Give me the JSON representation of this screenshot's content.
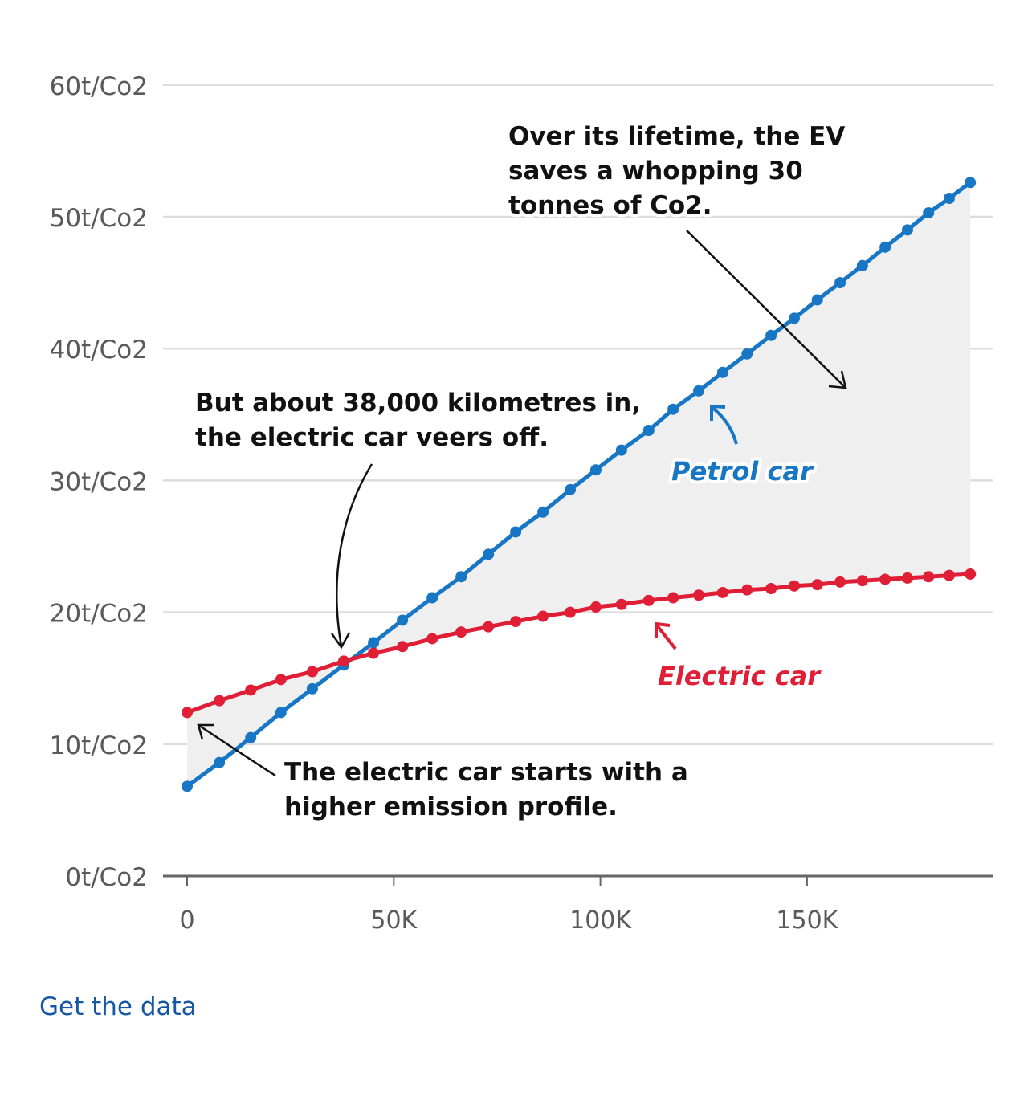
{
  "chart_data": {
    "type": "line",
    "title": "",
    "xlabel": "",
    "ylabel": "",
    "xlim": [
      0,
      195000
    ],
    "ylim": [
      0,
      60
    ],
    "grid": true,
    "y_ticks": [
      {
        "value": 0,
        "label": "0t/Co2"
      },
      {
        "value": 10,
        "label": "10t/Co2"
      },
      {
        "value": 20,
        "label": "20t/Co2"
      },
      {
        "value": 30,
        "label": "30t/Co2"
      },
      {
        "value": 40,
        "label": "40t/Co2"
      },
      {
        "value": 50,
        "label": "50t/Co2"
      },
      {
        "value": 60,
        "label": "60t/Co2"
      }
    ],
    "x_ticks": [
      {
        "value": 0,
        "label": "0"
      },
      {
        "value": 50000,
        "label": "50K"
      },
      {
        "value": 100000,
        "label": "100K"
      },
      {
        "value": 150000,
        "label": "150K"
      }
    ],
    "x": [
      0,
      7800,
      15400,
      22700,
      30300,
      37900,
      45100,
      52100,
      59300,
      66300,
      72900,
      79500,
      86100,
      92700,
      98900,
      105100,
      111700,
      117600,
      123800,
      129600,
      135500,
      141300,
      146900,
      152500,
      158000,
      163400,
      168900,
      174300,
      179400,
      184400,
      189500
    ],
    "series": [
      {
        "name": "Petrol car",
        "color": "#1777c4",
        "values": [
          6.8,
          8.6,
          10.5,
          12.4,
          14.2,
          16.0,
          17.7,
          19.4,
          21.1,
          22.7,
          24.4,
          26.1,
          27.6,
          29.3,
          30.8,
          32.3,
          33.8,
          35.4,
          36.8,
          38.2,
          39.6,
          41.0,
          42.3,
          43.7,
          45.0,
          46.3,
          47.7,
          49.0,
          50.3,
          51.4,
          52.6
        ]
      },
      {
        "name": "Electric car",
        "color": "#e01f36",
        "values": [
          12.4,
          13.3,
          14.1,
          14.9,
          15.5,
          16.3,
          16.9,
          17.4,
          18.0,
          18.5,
          18.9,
          19.3,
          19.7,
          20.0,
          20.4,
          20.6,
          20.9,
          21.1,
          21.3,
          21.5,
          21.7,
          21.8,
          22.0,
          22.1,
          22.3,
          22.4,
          22.5,
          22.6,
          22.7,
          22.8,
          22.9
        ]
      }
    ],
    "shaded_area": {
      "between": [
        "Petrol car",
        "Electric car"
      ],
      "color": "#efefef"
    },
    "annotations": [
      {
        "id": "lifetime",
        "lines": [
          "Over its lifetime, the EV",
          "saves a whopping 30",
          "tonnes of Co2."
        ]
      },
      {
        "id": "crossover",
        "lines": [
          "But about 38,000 kilometres in,",
          "the electric car veers off."
        ]
      },
      {
        "id": "start",
        "lines": [
          "The electric car starts with a",
          "higher emission profile."
        ]
      }
    ],
    "series_labels": [
      {
        "text": "Petrol car",
        "color": "#1777c4"
      },
      {
        "text": "Electric car",
        "color": "#e01f36"
      }
    ]
  },
  "footer": {
    "get_data_link": "Get the data"
  },
  "colors": {
    "grid": "#dcdcdc",
    "axis": "#666666",
    "text": "#111111",
    "tick_text": "#5a5a5a",
    "link": "#1557a4"
  }
}
